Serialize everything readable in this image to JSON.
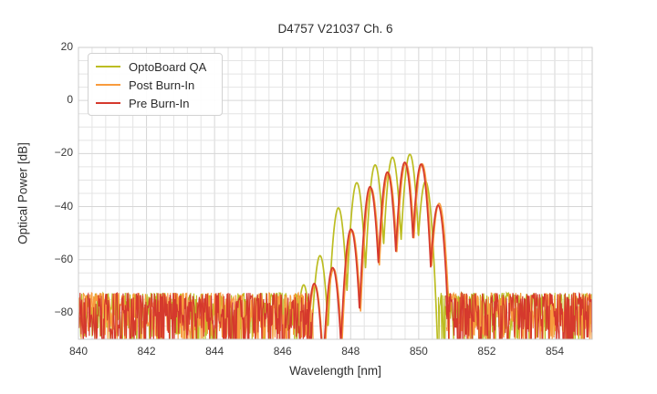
{
  "chart_data": {
    "type": "line",
    "title": "D4757 V21037 Ch. 6",
    "xlabel": "Wavelength [nm]",
    "ylabel": "Optical Power [dB]",
    "xlim": [
      840.0,
      855.1
    ],
    "ylim": [
      -90,
      20
    ],
    "x_major_ticks": [
      840,
      842,
      844,
      846,
      848,
      850,
      852,
      854
    ],
    "y_major_ticks": [
      20,
      0,
      -20,
      -40,
      -60,
      -80
    ],
    "x_minor_step_nm": 0.4,
    "y_minor_step_db": 5,
    "grid": true,
    "legend_position": "upper-left",
    "legend_entries": [
      "OptoBoard QA",
      "Post Burn-In",
      "Pre Burn-In"
    ],
    "colors": {
      "optoboard_qa": "#bcbd22",
      "post_burn_in": "#f89b3d",
      "pre_burn_in": "#d5392d",
      "grid_major": "#d6d6d6",
      "grid_minor": "#e4e4e4",
      "axes_border": "#cccccc"
    },
    "series": [
      {
        "name": "OptoBoard QA",
        "color": "#bcbd22",
        "envelope_peaks_nm_db": [
          [
            846.62,
            -69.5
          ],
          [
            847.1,
            -58.5
          ],
          [
            847.64,
            -40.5
          ],
          [
            848.18,
            -31.0
          ],
          [
            848.72,
            -24.3
          ],
          [
            849.23,
            -21.4
          ],
          [
            849.74,
            -20.3
          ],
          [
            850.2,
            -30.5
          ]
        ],
        "lobe_half_spacing_nm": 0.26,
        "valley_drop_db": 33,
        "signal_region_nm": [
          846.3,
          850.62
        ],
        "noise_regions_nm": [
          [
            840.0,
            846.5
          ],
          [
            850.58,
            855.1
          ]
        ],
        "noise_top_db": -72.5,
        "noise_depth_db": 21.5,
        "seed": 11
      },
      {
        "name": "Post Burn-In",
        "color": "#f89b3d",
        "envelope_peaks_nm_db": [
          [
            846.95,
            -69.5
          ],
          [
            847.5,
            -63.5
          ],
          [
            848.04,
            -49.0
          ],
          [
            848.6,
            -33.0
          ],
          [
            849.11,
            -27.4
          ],
          [
            849.62,
            -23.6
          ],
          [
            850.1,
            -23.9
          ],
          [
            850.6,
            -38.8
          ]
        ],
        "lobe_half_spacing_nm": 0.26,
        "valley_drop_db": 33,
        "signal_region_nm": [
          846.62,
          850.88
        ],
        "noise_regions_nm": [
          [
            840.0,
            846.9
          ],
          [
            850.82,
            855.1
          ]
        ],
        "noise_top_db": -72.5,
        "noise_depth_db": 21.5,
        "seed": 22
      },
      {
        "name": "Pre Burn-In",
        "color": "#d5392d",
        "envelope_peaks_nm_db": [
          [
            846.93,
            -69.0
          ],
          [
            847.47,
            -63.0
          ],
          [
            848.01,
            -48.5
          ],
          [
            848.57,
            -32.5
          ],
          [
            849.08,
            -27.0
          ],
          [
            849.59,
            -23.3
          ],
          [
            850.07,
            -24.0
          ],
          [
            850.57,
            -39.5
          ]
        ],
        "lobe_half_spacing_nm": 0.26,
        "valley_drop_db": 33,
        "signal_region_nm": [
          846.6,
          850.85
        ],
        "noise_regions_nm": [
          [
            840.0,
            846.88
          ],
          [
            850.8,
            855.1
          ]
        ],
        "noise_top_db": -72.5,
        "noise_depth_db": 21.5,
        "seed": 33
      }
    ]
  }
}
